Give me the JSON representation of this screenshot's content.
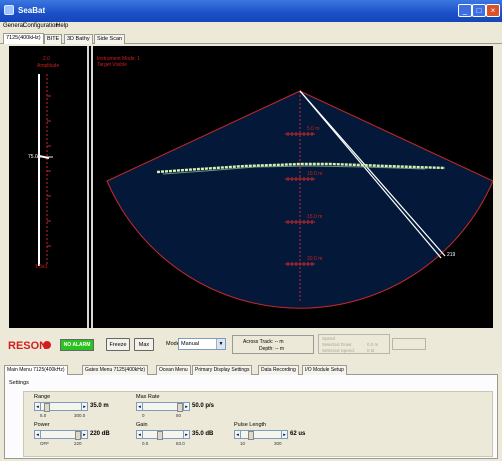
{
  "window": {
    "title": "SeaBat"
  },
  "menu": [
    "General",
    "Configuration",
    "Help"
  ],
  "view_tabs": [
    "7125(400kHz)",
    "BITE",
    "3D Bathy",
    "Side Scan"
  ],
  "sonar": {
    "scale_label_top": "2.0",
    "scale_label_sub": "Amplitude",
    "scale_label_bottom": "1.5e1",
    "depth_marker_left": "75.0",
    "info_line1": "Instrument Mode: 1",
    "info_line2": "Target Visible",
    "range_ring_labels": [
      "5.0 m",
      "10.0 m",
      "15.0 m",
      "20.0 m"
    ],
    "beam_label": "219",
    "colors": {
      "background": "#000000",
      "fan": "#041c3e",
      "ring": "#c82828",
      "seafloor": "#d8f0b0"
    }
  },
  "controls": {
    "logo_text": "RESON",
    "alarm": "NO ALARM",
    "freeze": "Freeze",
    "max": "Max",
    "mode_label": "Mode",
    "mode_value": "Manual",
    "across_track": "Across Track: -- m",
    "depth": "Depth: -- m",
    "grey_title": "Speed",
    "grey_line1": "Selected Draw:",
    "grey_line1_val": "0.0 m",
    "grey_line2": "Selected Speed:",
    "grey_line2_val": "0 kt"
  },
  "bottom_tabs": [
    "Main Menu 7125(400kHz)",
    "Gates Menu 7125(400kHz)",
    "Ocean Menu",
    "Primary Display Settings",
    "Data Recording",
    "I/O Module Setup"
  ],
  "settings": {
    "title": "Settings",
    "sliders": [
      {
        "name": "range",
        "label": "Range",
        "value": "35.0 m",
        "min": "5.0",
        "max": "300.0",
        "level": 0.1
      },
      {
        "name": "max-rate",
        "label": "Max Rate",
        "value": "50.0 p/s",
        "min": "0",
        "max": "50",
        "level": 1.0
      },
      {
        "name": "power",
        "label": "Power",
        "value": "220 dB",
        "min": "OFF",
        "max": "220",
        "level": 1.0
      },
      {
        "name": "gain",
        "label": "Gain",
        "value": "35.0 dB",
        "min": "0.0",
        "max": "83.0",
        "level": 0.42
      },
      {
        "name": "pulse-length",
        "label": "Pulse Length",
        "value": "62 us",
        "min": "10",
        "max": "300",
        "level": 0.2
      }
    ]
  }
}
